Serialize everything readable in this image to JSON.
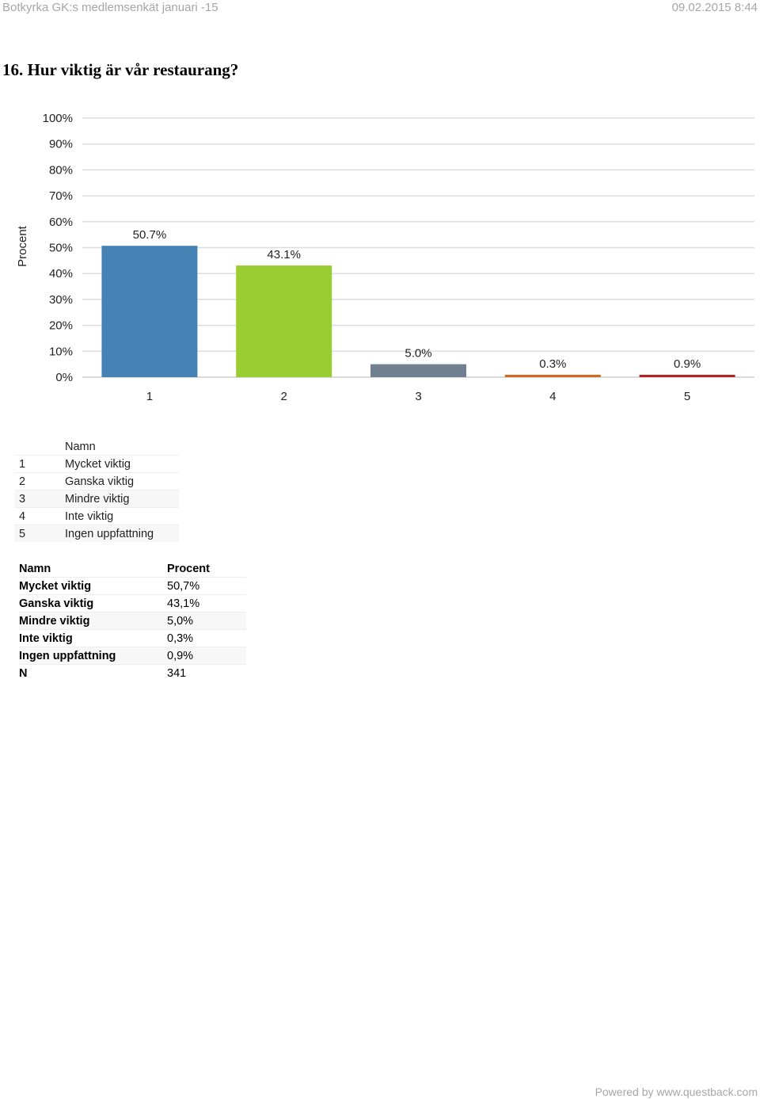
{
  "header": {
    "left": "Botkyrka GK:s medlemsenkät januari -15",
    "right": "09.02.2015 8:44"
  },
  "question_title": "16. Hur viktig är vår restaurang?",
  "chart_data": {
    "type": "bar",
    "ylabel": "Procent",
    "xlabel": "",
    "categories": [
      "1",
      "2",
      "3",
      "4",
      "5"
    ],
    "values": [
      50.7,
      43.1,
      5.0,
      0.3,
      0.9
    ],
    "data_labels": [
      "50.7%",
      "43.1%",
      "5.0%",
      "0.3%",
      "0.9%"
    ],
    "colors": [
      "#4682b4",
      "#9acd32",
      "#708090",
      "#d2691e",
      "#b22222"
    ],
    "ylim": [
      0,
      100
    ],
    "yticks": [
      "0%",
      "10%",
      "20%",
      "30%",
      "40%",
      "50%",
      "60%",
      "70%",
      "80%",
      "90%",
      "100%"
    ],
    "grid": true
  },
  "legend_table": {
    "header": "Namn",
    "rows": [
      {
        "num": "1",
        "label": "Mycket viktig"
      },
      {
        "num": "2",
        "label": "Ganska viktig"
      },
      {
        "num": "3",
        "label": "Mindre viktig"
      },
      {
        "num": "4",
        "label": "Inte viktig"
      },
      {
        "num": "5",
        "label": "Ingen uppfattning"
      }
    ]
  },
  "results_table": {
    "headers": [
      "Namn",
      "Procent"
    ],
    "rows": [
      {
        "name": "Mycket viktig",
        "pct": "50,7%"
      },
      {
        "name": "Ganska viktig",
        "pct": "43,1%"
      },
      {
        "name": "Mindre viktig",
        "pct": "5,0%"
      },
      {
        "name": "Inte viktig",
        "pct": "0,3%"
      },
      {
        "name": "Ingen uppfattning",
        "pct": "0,9%"
      },
      {
        "name": "N",
        "pct": "341"
      }
    ]
  },
  "footer": "Powered by www.questback.com"
}
